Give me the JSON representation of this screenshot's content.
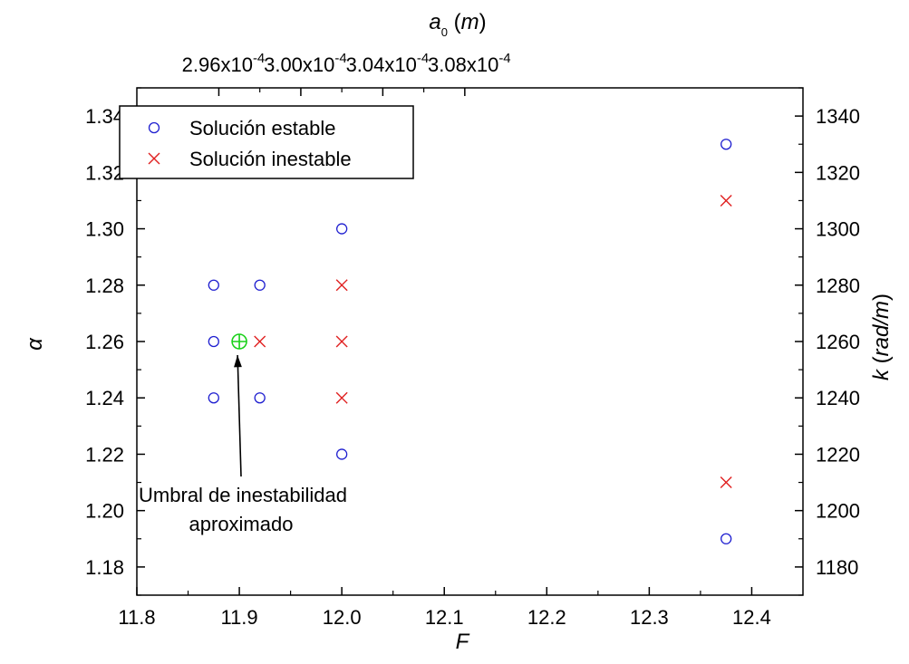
{
  "chart_data": {
    "type": "scatter",
    "x_axis": {
      "label": "F",
      "range": [
        11.8,
        12.45
      ],
      "ticks": [
        11.8,
        11.9,
        12.0,
        12.1,
        12.2,
        12.3,
        12.4
      ],
      "tick_labels": [
        "11.8",
        "11.9",
        "12.0",
        "12.1",
        "12.2",
        "12.3",
        "12.4"
      ]
    },
    "y_axis": {
      "label": "α",
      "range": [
        1.17,
        1.35
      ],
      "ticks": [
        1.18,
        1.2,
        1.22,
        1.24,
        1.26,
        1.28,
        1.3,
        1.32,
        1.34
      ],
      "tick_labels": [
        "1.18",
        "1.20",
        "1.22",
        "1.24",
        "1.26",
        "1.28",
        "1.30",
        "1.32",
        "1.34"
      ]
    },
    "top_axis": {
      "label_main": "a",
      "label_sub": "0",
      "label_unit": "m",
      "ticks_at_F": [
        11.88,
        11.96,
        12.04,
        12.12
      ],
      "tick_labels": [
        "2.96x10",
        "3.00x10",
        "3.04x10",
        "3.08x10"
      ],
      "tick_exponent": "-4"
    },
    "right_axis": {
      "label_main": "k",
      "label_unit": "rad/m",
      "ticks": [
        1180,
        1200,
        1220,
        1240,
        1260,
        1280,
        1300,
        1320,
        1340
      ],
      "tick_labels": [
        "1180",
        "1200",
        "1220",
        "1240",
        "1260",
        "1280",
        "1300",
        "1320",
        "1340"
      ]
    },
    "grid": false,
    "legend": {
      "position": "top-left"
    },
    "series": [
      {
        "name": "Solución estable",
        "marker": "circle",
        "color": "#1f1fd0",
        "points": [
          [
            11.875,
            1.28
          ],
          [
            11.875,
            1.26
          ],
          [
            11.875,
            1.24
          ],
          [
            11.92,
            1.28
          ],
          [
            11.92,
            1.24
          ],
          [
            12.0,
            1.3
          ],
          [
            12.0,
            1.22
          ],
          [
            12.375,
            1.33
          ],
          [
            12.375,
            1.19
          ]
        ]
      },
      {
        "name": "Solución inestable",
        "marker": "x",
        "color": "#e02020",
        "points": [
          [
            11.92,
            1.26
          ],
          [
            12.0,
            1.28
          ],
          [
            12.0,
            1.26
          ],
          [
            12.0,
            1.24
          ],
          [
            12.375,
            1.31
          ],
          [
            12.375,
            1.21
          ]
        ]
      }
    ],
    "threshold_marker": {
      "point": [
        11.9,
        1.26
      ],
      "color": "#19d019",
      "marker": "circled-plus"
    },
    "annotation": {
      "lines": [
        "Umbral de inestabilidad",
        "aproximado"
      ],
      "points_to": [
        11.9,
        1.26
      ]
    }
  }
}
